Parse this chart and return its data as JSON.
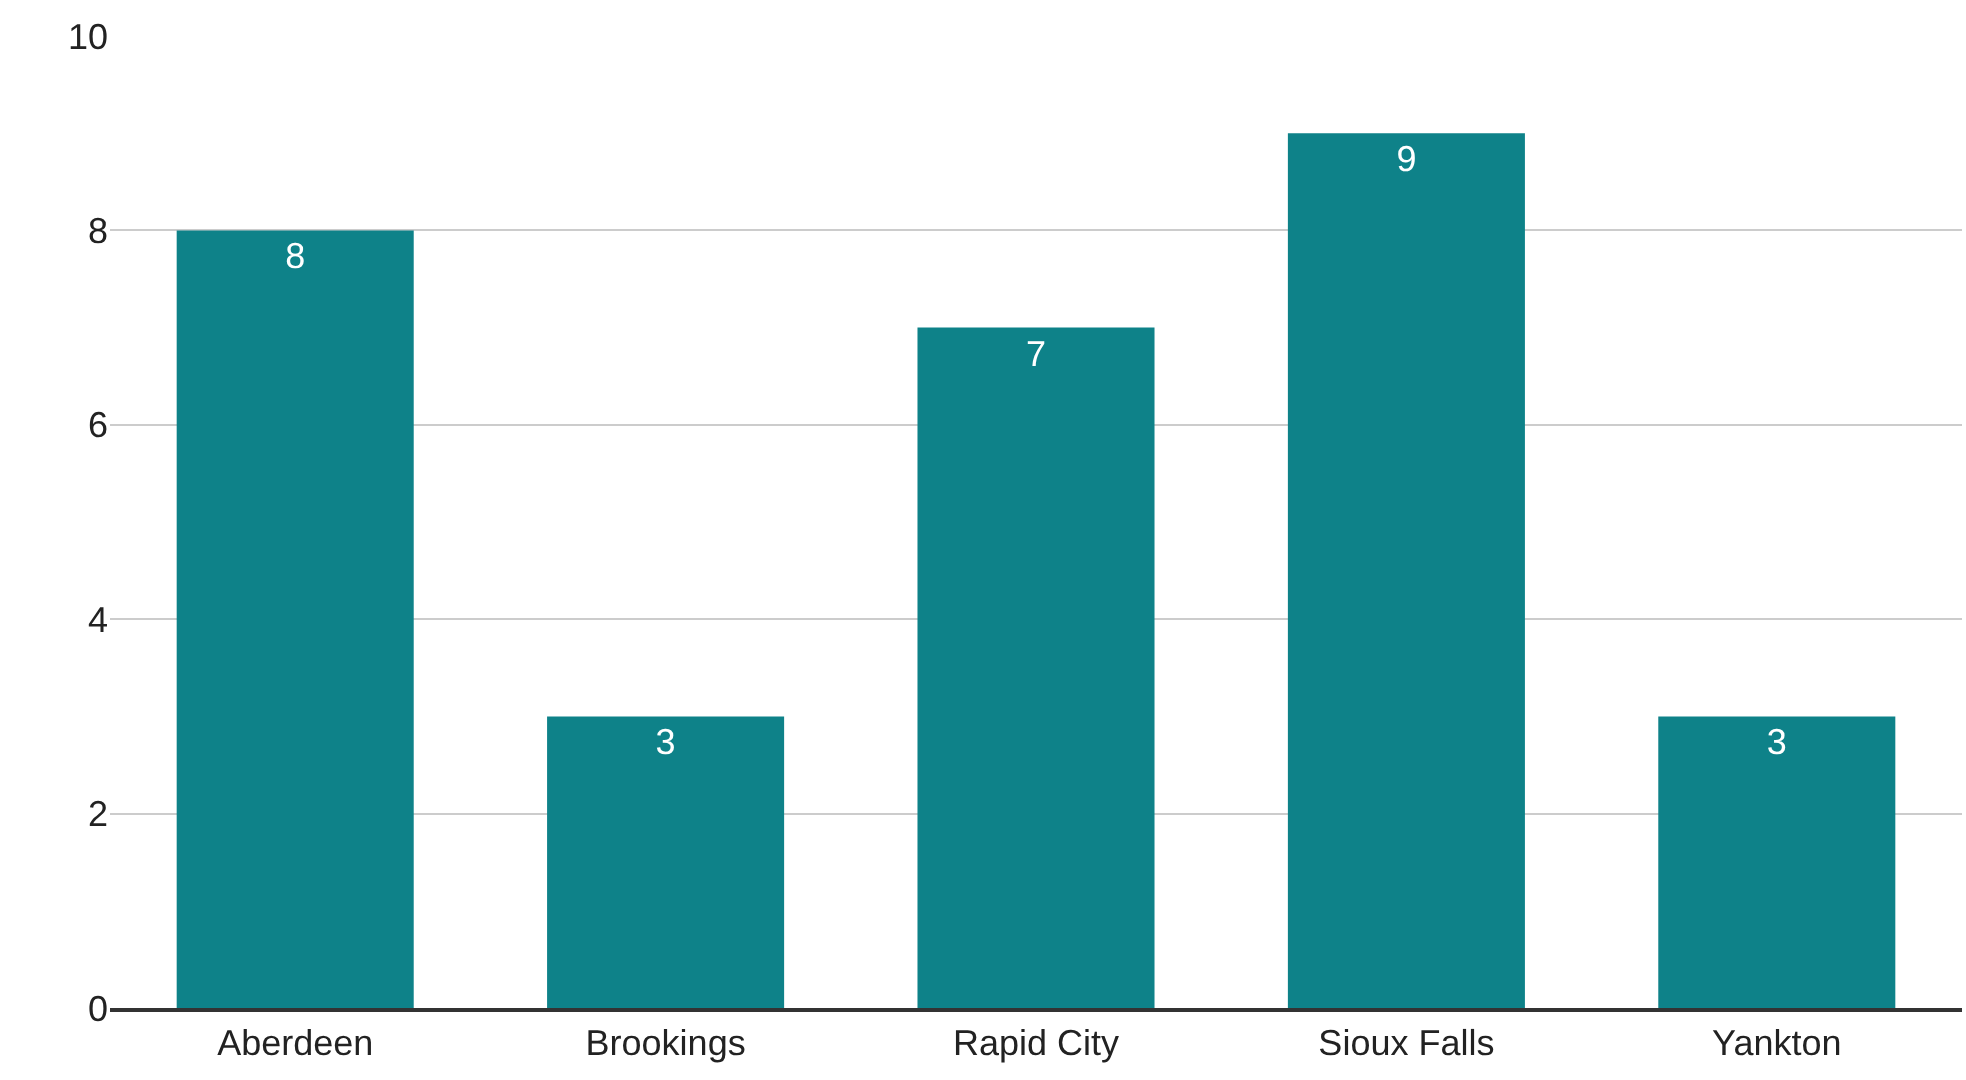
{
  "chart_data": {
    "type": "bar",
    "categories": [
      "Aberdeen",
      "Brookings",
      "Rapid City",
      "Sioux Falls",
      "Yankton"
    ],
    "values": [
      8,
      3,
      7,
      9,
      3
    ],
    "color": "#0e8289",
    "ylim": [
      0,
      10
    ],
    "yticks": [
      0,
      2,
      4,
      6,
      8,
      10
    ],
    "grid": "y",
    "data_labels": true
  }
}
